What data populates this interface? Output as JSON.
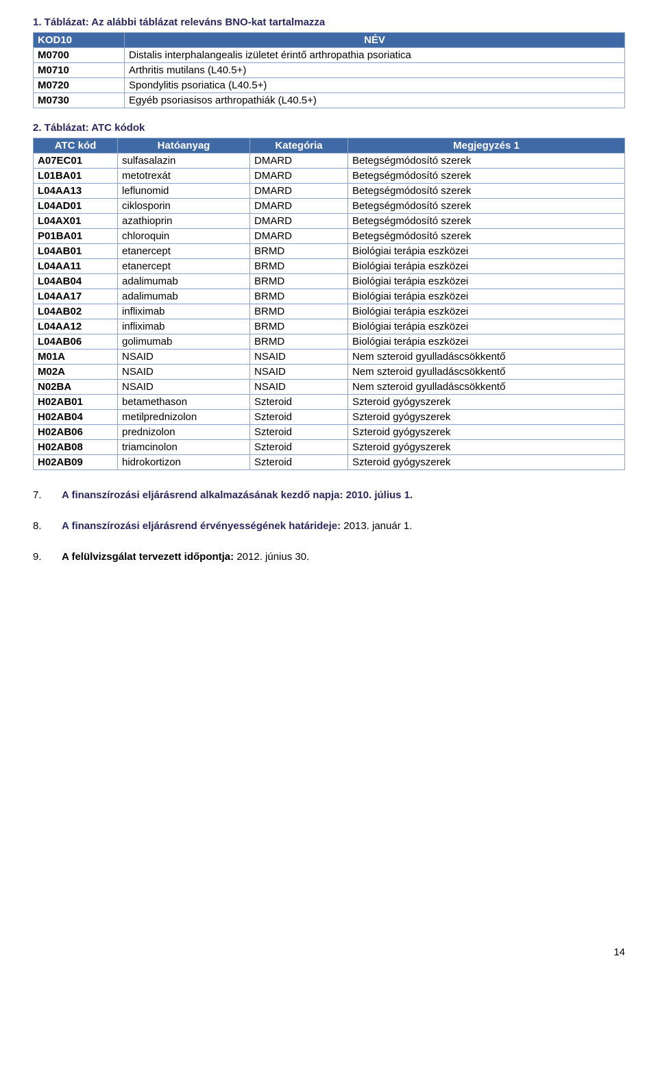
{
  "t1": {
    "title": "1. Táblázat: Az alábbi táblázat releváns BNO-kat tartalmazza",
    "header": {
      "c0": "KOD10",
      "c1": "NÉV"
    },
    "rows": [
      {
        "c0": "M0700",
        "c1": "Distalis interphalangealis izületet érintő arthropathia psoriatica"
      },
      {
        "c0": "M0710",
        "c1": "Arthritis mutilans (L40.5+)"
      },
      {
        "c0": "M0720",
        "c1": "Spondylitis psoriatica (L40.5+)"
      },
      {
        "c0": "M0730",
        "c1": "Egyéb psoriasisos arthropathiák (L40.5+)"
      }
    ]
  },
  "t2": {
    "title": "2. Táblázat: ATC kódok",
    "header": {
      "c0": "ATC kód",
      "c1": "Hatóanyag",
      "c2": "Kategória",
      "c3": "Megjegyzés 1"
    },
    "rows": [
      {
        "c0": "A07EC01",
        "c1": "sulfasalazin",
        "c2": "DMARD",
        "c3": "Betegségmódosító szerek"
      },
      {
        "c0": "L01BA01",
        "c1": "metotrexát",
        "c2": "DMARD",
        "c3": "Betegségmódosító szerek"
      },
      {
        "c0": "L04AA13",
        "c1": "leflunomid",
        "c2": "DMARD",
        "c3": "Betegségmódosító szerek"
      },
      {
        "c0": "L04AD01",
        "c1": "ciklosporin",
        "c2": "DMARD",
        "c3": "Betegségmódosító szerek"
      },
      {
        "c0": "L04AX01",
        "c1": "azathioprin",
        "c2": "DMARD",
        "c3": "Betegségmódosító szerek"
      },
      {
        "c0": "P01BA01",
        "c1": "chloroquin",
        "c2": "DMARD",
        "c3": "Betegségmódosító szerek"
      },
      {
        "c0": "L04AB01",
        "c1": "etanercept",
        "c2": "BRMD",
        "c3": "Biológiai terápia eszközei"
      },
      {
        "c0": "L04AA11",
        "c1": "etanercept",
        "c2": "BRMD",
        "c3": "Biológiai terápia eszközei"
      },
      {
        "c0": "L04AB04",
        "c1": "adalimumab",
        "c2": "BRMD",
        "c3": "Biológiai terápia eszközei"
      },
      {
        "c0": "L04AA17",
        "c1": "adalimumab",
        "c2": "BRMD",
        "c3": "Biológiai terápia eszközei"
      },
      {
        "c0": "L04AB02",
        "c1": "infliximab",
        "c2": "BRMD",
        "c3": "Biológiai terápia eszközei"
      },
      {
        "c0": "L04AA12",
        "c1": "infliximab",
        "c2": "BRMD",
        "c3": "Biológiai terápia eszközei"
      },
      {
        "c0": "L04AB06",
        "c1": "golimumab",
        "c2": "BRMD",
        "c3": "Biológiai terápia eszközei"
      },
      {
        "c0": "M01A",
        "c1": "NSAID",
        "c2": "NSAID",
        "c3": "Nem szteroid gyulladáscsökkentő"
      },
      {
        "c0": "M02A",
        "c1": "NSAID",
        "c2": "NSAID",
        "c3": "Nem szteroid gyulladáscsökkentő"
      },
      {
        "c0": "N02BA",
        "c1": "NSAID",
        "c2": "NSAID",
        "c3": "Nem szteroid gyulladáscsökkentő"
      },
      {
        "c0": "H02AB01",
        "c1": "betamethason",
        "c2": "Szteroid",
        "c3": "Szteroid gyógyszerek"
      },
      {
        "c0": "H02AB04",
        "c1": "metilprednizolon",
        "c2": "Szteroid",
        "c3": "Szteroid gyógyszerek"
      },
      {
        "c0": "H02AB06",
        "c1": "prednizolon",
        "c2": "Szteroid",
        "c3": "Szteroid gyógyszerek"
      },
      {
        "c0": "H02AB08",
        "c1": "triamcinolon",
        "c2": "Szteroid",
        "c3": "Szteroid gyógyszerek"
      },
      {
        "c0": "H02AB09",
        "c1": "hidrokortizon",
        "c2": "Szteroid",
        "c3": "Szteroid gyógyszerek"
      }
    ]
  },
  "sections": {
    "s7": {
      "num": "7.",
      "bold": "A finanszírozási eljárásrend alkalmazásának kezdő napja: 2010. július 1."
    },
    "s8": {
      "num": "8.",
      "bold": "A finanszírozási eljárásrend érvényességének határideje:",
      "rest": " 2013. január 1."
    },
    "s9": {
      "num": "9.",
      "bold": "A felülvizsgálat tervezett időpontja:",
      "rest": " 2012. június 30."
    }
  },
  "page_number": "14"
}
